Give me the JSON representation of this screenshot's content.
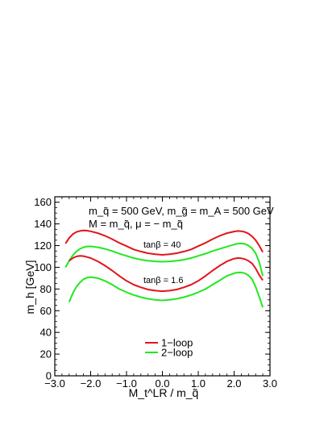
{
  "chart_data": {
    "type": "line",
    "xlabel": "M_t^LR / m_q̃",
    "ylabel": "m_h [GeV]",
    "xlim": [
      -3.0,
      3.0
    ],
    "ylim": [
      0,
      165
    ],
    "x_ticks": [
      "−3.0",
      "−2.0",
      "−1.0",
      "0.0",
      "1.0",
      "2.0",
      "3.0"
    ],
    "y_ticks": [
      "0",
      "20",
      "40",
      "60",
      "80",
      "100",
      "120",
      "140",
      "160"
    ],
    "grid": false,
    "legend_position": "bottom-center",
    "colors": {
      "one_loop": "#e0151b",
      "two_loop": "#22e81f"
    },
    "annotations": {
      "line1": "m_q̃ = 500 GeV, m_g̃ = m_A = 500 GeV",
      "line2": "M = m_q̃, μ = − m_q̃",
      "tanb40": "tanβ = 40",
      "tanb16": "tanβ = 1.6"
    },
    "series": [
      {
        "name": "1−loop",
        "group": "tanβ = 40",
        "color": "#e0151b",
        "x": [
          -2.7,
          -2.6,
          -2.5,
          -2.4,
          -2.3,
          -2.2,
          -2.1,
          -2.0,
          -1.8,
          -1.6,
          -1.4,
          -1.2,
          -1.0,
          -0.8,
          -0.6,
          -0.4,
          -0.2,
          0.0,
          0.2,
          0.4,
          0.6,
          0.8,
          1.0,
          1.2,
          1.4,
          1.6,
          1.8,
          2.0,
          2.1,
          2.2,
          2.3,
          2.4,
          2.5,
          2.6,
          2.7,
          2.8
        ],
        "y": [
          122,
          127,
          130.5,
          132.5,
          133.5,
          134,
          133.8,
          133.2,
          131.5,
          129,
          126,
          122.5,
          119.5,
          116.5,
          114.5,
          113,
          112,
          111.5,
          112,
          113,
          114.5,
          116.5,
          119.5,
          122.5,
          126,
          129,
          131.5,
          133,
          133.5,
          133.3,
          132.5,
          131,
          128.5,
          125,
          120,
          114
        ]
      },
      {
        "name": "2−loop",
        "group": "tanβ = 40",
        "color": "#22e81f",
        "x": [
          -2.7,
          -2.6,
          -2.5,
          -2.4,
          -2.3,
          -2.2,
          -2.1,
          -2.0,
          -1.8,
          -1.6,
          -1.4,
          -1.2,
          -1.0,
          -0.8,
          -0.6,
          -0.4,
          -0.2,
          0.0,
          0.2,
          0.4,
          0.6,
          0.8,
          1.0,
          1.2,
          1.4,
          1.6,
          1.8,
          2.0,
          2.1,
          2.2,
          2.3,
          2.4,
          2.5,
          2.6,
          2.7,
          2.8
        ],
        "y": [
          100,
          106,
          111,
          114.5,
          117,
          118.5,
          119.2,
          119.3,
          118.5,
          117,
          115,
          112.5,
          110.5,
          108.5,
          107,
          106,
          105.5,
          105.2,
          105.5,
          106,
          107,
          108.5,
          110.5,
          112.5,
          115,
          117,
          119,
          121,
          121.8,
          122,
          121.5,
          120,
          117.5,
          113,
          105,
          92
        ]
      },
      {
        "name": "1−loop",
        "group": "tanβ = 1.6",
        "color": "#e0151b",
        "x": [
          -2.6,
          -2.5,
          -2.4,
          -2.3,
          -2.2,
          -2.1,
          -2.0,
          -1.8,
          -1.6,
          -1.4,
          -1.2,
          -1.0,
          -0.8,
          -0.6,
          -0.4,
          -0.2,
          0.0,
          0.2,
          0.4,
          0.6,
          0.8,
          1.0,
          1.2,
          1.4,
          1.6,
          1.8,
          2.0,
          2.1,
          2.2,
          2.3,
          2.4,
          2.5,
          2.6,
          2.7,
          2.8
        ],
        "y": [
          106,
          108.5,
          110,
          110.5,
          110.3,
          109.5,
          108.5,
          105.5,
          101.5,
          97,
          92,
          87.5,
          84,
          81.5,
          79.5,
          78.5,
          78,
          78.5,
          79.5,
          81.5,
          84,
          87.5,
          92,
          97,
          101.5,
          105.5,
          108,
          108.5,
          108.3,
          107.5,
          106,
          103.5,
          99,
          93,
          88
        ]
      },
      {
        "name": "2−loop",
        "group": "tanβ = 1.6",
        "color": "#22e81f",
        "x": [
          -2.6,
          -2.5,
          -2.4,
          -2.3,
          -2.2,
          -2.1,
          -2.0,
          -1.8,
          -1.6,
          -1.4,
          -1.2,
          -1.0,
          -0.8,
          -0.6,
          -0.4,
          -0.2,
          0.0,
          0.2,
          0.4,
          0.6,
          0.8,
          1.0,
          1.2,
          1.4,
          1.6,
          1.8,
          2.0,
          2.1,
          2.2,
          2.3,
          2.4,
          2.5,
          2.6,
          2.7,
          2.8
        ],
        "y": [
          68,
          76,
          82,
          86,
          89,
          90.5,
          91,
          90,
          87.5,
          84,
          80,
          77,
          74.5,
          72.5,
          71,
          70,
          69.5,
          70,
          71,
          72.5,
          74.5,
          77,
          80,
          84,
          88,
          92,
          94.5,
          95.2,
          95.3,
          94.5,
          92.5,
          89,
          82,
          73,
          63
        ]
      }
    ],
    "legend": [
      {
        "label": "1−loop",
        "color": "#e0151b"
      },
      {
        "label": "2−loop",
        "color": "#22e81f"
      }
    ]
  }
}
